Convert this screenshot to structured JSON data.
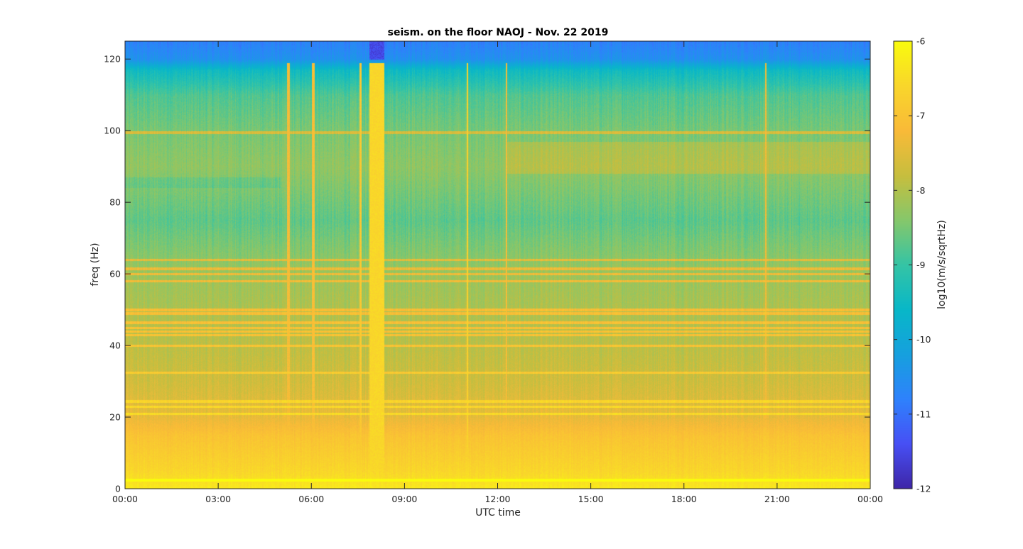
{
  "chart_data": {
    "type": "heatmap",
    "title": "seism. on the floor NAOJ - Nov. 22 2019",
    "xlabel": "UTC time",
    "ylabel": "freq (Hz)",
    "xticks": [
      "00:00",
      "03:00",
      "06:00",
      "09:00",
      "12:00",
      "15:00",
      "18:00",
      "21:00",
      "00:00"
    ],
    "yticks": [
      0,
      20,
      40,
      60,
      80,
      100,
      120
    ],
    "x_hours": [
      0,
      24
    ],
    "ylim": [
      0,
      125
    ],
    "colorbar": {
      "label": "log10(m/s/sqrtHz)",
      "range": [
        -12,
        -6
      ],
      "ticks": [
        -6,
        -7,
        -8,
        -9,
        -10,
        -11,
        -12
      ],
      "colormap": "parula"
    },
    "baseline_profile": [
      {
        "freq": 0,
        "value": -6.3
      },
      {
        "freq": 5,
        "value": -6.6
      },
      {
        "freq": 15,
        "value": -7.0
      },
      {
        "freq": 20,
        "value": -7.4
      },
      {
        "freq": 30,
        "value": -7.7
      },
      {
        "freq": 40,
        "value": -7.9
      },
      {
        "freq": 60,
        "value": -8.2
      },
      {
        "freq": 75,
        "value": -8.7
      },
      {
        "freq": 90,
        "value": -8.3
      },
      {
        "freq": 100,
        "value": -8.5
      },
      {
        "freq": 110,
        "value": -8.8
      },
      {
        "freq": 117,
        "value": -9.5
      },
      {
        "freq": 120,
        "value": -10.5
      },
      {
        "freq": 125,
        "value": -10.8
      }
    ],
    "horizontal_lines_hz": [
      2.5,
      21,
      23,
      24.5,
      32.5,
      40,
      43,
      44,
      45,
      46.5,
      49,
      50,
      58,
      60,
      61.5,
      64,
      99.5
    ],
    "broadband_events": [
      {
        "start": 7.85,
        "end": 8.35,
        "value": -6.6
      },
      {
        "start": 5.2,
        "end": 5.3,
        "value": -7.2
      },
      {
        "start": 6.0,
        "end": 6.1,
        "value": -7.1
      },
      {
        "start": 7.55,
        "end": 7.6,
        "value": -6.9
      },
      {
        "start": 11.0,
        "end": 11.05,
        "value": -6.7
      },
      {
        "start": 12.25,
        "end": 12.3,
        "value": -7.2
      },
      {
        "start": 20.6,
        "end": 20.65,
        "value": -7.3
      }
    ],
    "dark_band": {
      "start": 7.85,
      "end": 8.35,
      "fmin": 120,
      "fmax": 125,
      "value": -11.5
    }
  }
}
